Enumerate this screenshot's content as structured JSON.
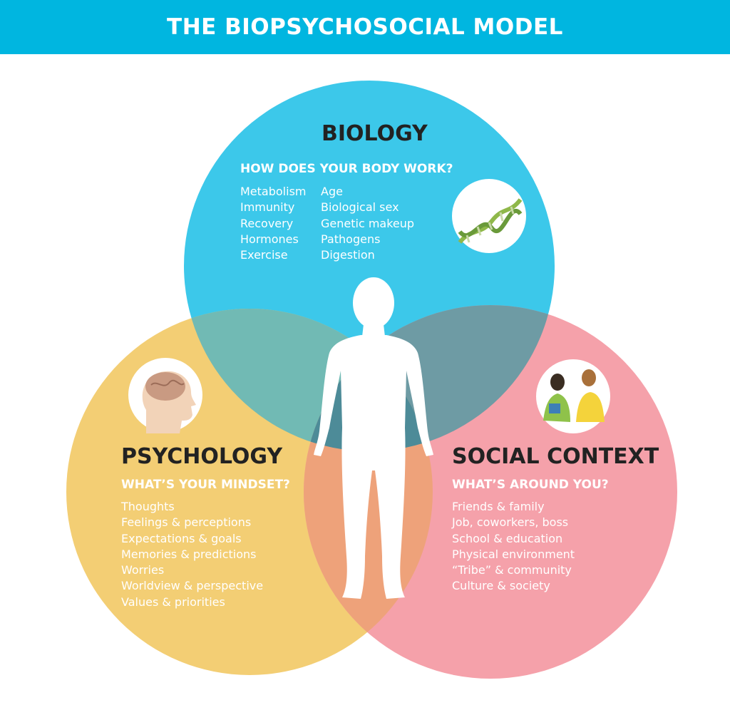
{
  "title": "THE BIOPSYCHOSOCIAL MODEL",
  "colors": {
    "header": "#00b6e0",
    "biology": "#3cc8ea",
    "psychology": "#f3ce74",
    "social": "#f5a1aa",
    "overlap_bio_psych": "#71bab4",
    "overlap_bio_social": "#6e9ba4",
    "overlap_psych_social": "#eea27a",
    "overlap_center": "#4d8b98",
    "heading_text": "#222222",
    "list_text": "#ffffff"
  },
  "biology": {
    "heading": "BIOLOGY",
    "question": "HOW DOES YOUR BODY WORK?",
    "icon": "dna-icon",
    "items_left": [
      "Metabolism",
      "Immunity",
      "Recovery",
      "Hormones",
      "Exercise"
    ],
    "items_right": [
      "Age",
      "Biological sex",
      "Genetic makeup",
      "Pathogens",
      "Digestion"
    ]
  },
  "psychology": {
    "heading": "PSYCHOLOGY",
    "question": "WHAT’S YOUR MINDSET?",
    "icon": "brain-icon",
    "items": [
      "Thoughts",
      "Feelings & perceptions",
      "Expectations & goals",
      "Memories & predictions",
      "Worries",
      "Worldview & perspective",
      "Values & priorities"
    ]
  },
  "social": {
    "heading": "SOCIAL CONTEXT",
    "question": "WHAT’S AROUND YOU?",
    "icon": "people-talking-icon",
    "items": [
      "Friends & family",
      "Job, coworkers, boss",
      "School & education",
      "Physical environment",
      "“Tribe” & community",
      "Culture & society"
    ]
  },
  "center_figure": "human-silhouette-icon"
}
